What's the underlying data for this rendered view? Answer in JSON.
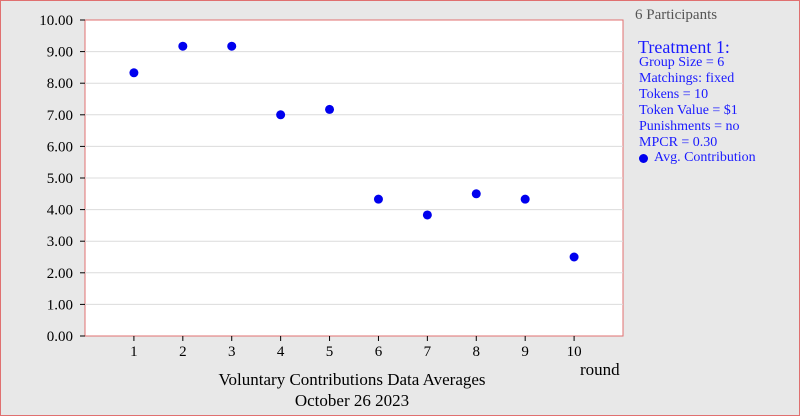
{
  "participants_label": "6 Participants",
  "treatment": {
    "title": "Treatment 1:",
    "params": [
      "Group Size = 6",
      "Matchings: fixed",
      "Tokens = 10",
      "Token Value = $1",
      "Punishments = no",
      "MPCR = 0.30"
    ]
  },
  "caption": {
    "line1": "Voluntary Contributions Data Averages",
    "line2": "October 26  2023"
  },
  "colors": {
    "point": "#0000ee",
    "legend_text": "#1a1aff",
    "frame_border": "#e07070",
    "background": "#e8e8e8"
  },
  "chart_data": {
    "type": "scatter",
    "title": "",
    "xlabel": "round",
    "ylabel": "",
    "x_ticks": [
      "1",
      "2",
      "3",
      "4",
      "5",
      "6",
      "7",
      "8",
      "9",
      "10"
    ],
    "y_ticks": [
      "0.00",
      "1.00",
      "2.00",
      "3.00",
      "4.00",
      "5.00",
      "6.00",
      "7.00",
      "8.00",
      "9.00",
      "10.00"
    ],
    "xlim": [
      0,
      11
    ],
    "ylim": [
      0,
      10
    ],
    "grid": "horizontal",
    "legend_position": "right",
    "series": [
      {
        "name": "Avg. Contribution",
        "x": [
          1,
          2,
          3,
          4,
          5,
          6,
          7,
          8,
          9,
          10
        ],
        "values": [
          8.33,
          9.17,
          9.17,
          7.0,
          7.17,
          4.33,
          3.83,
          4.5,
          4.33,
          2.5
        ]
      }
    ]
  }
}
